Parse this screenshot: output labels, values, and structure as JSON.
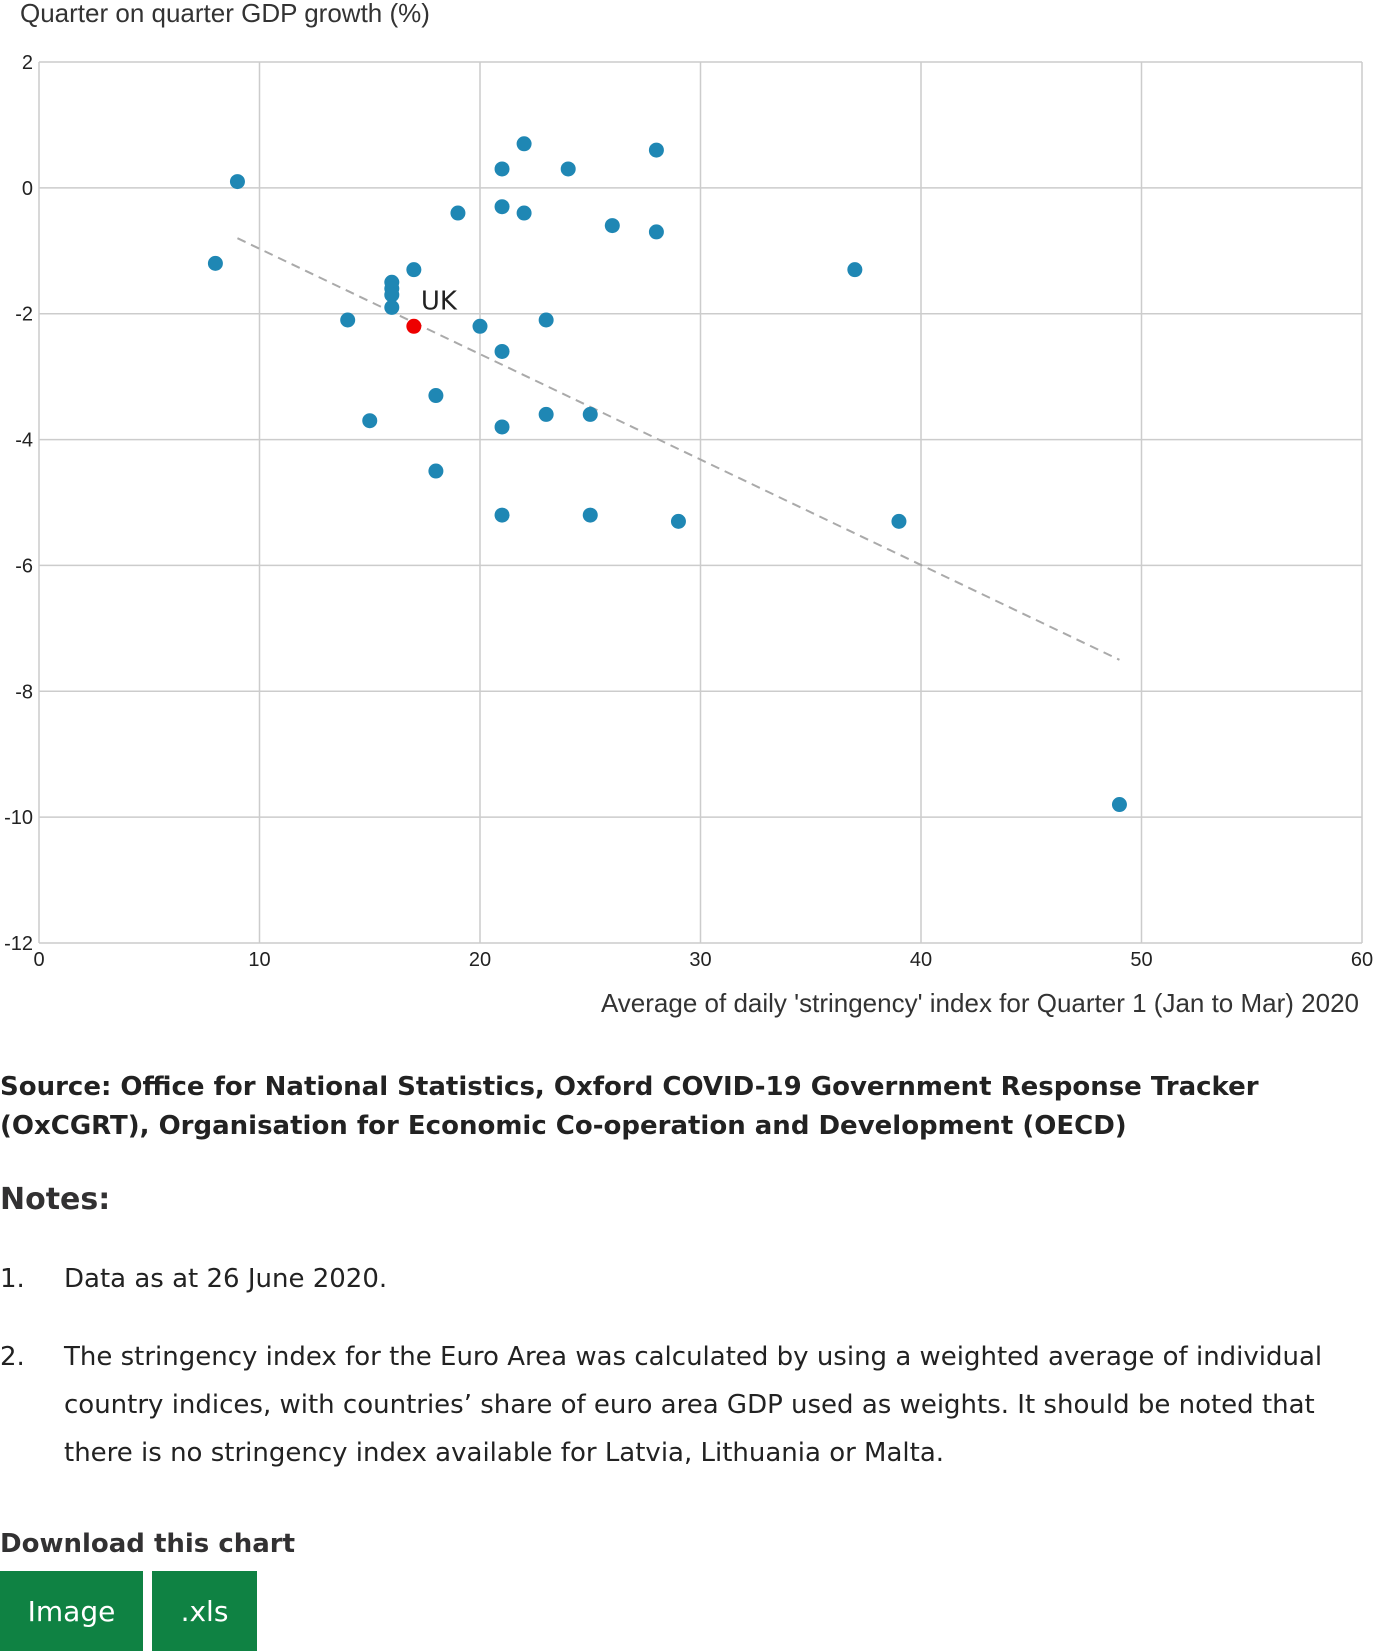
{
  "chart_data": {
    "type": "scatter",
    "ylabel": "Quarter on quarter GDP growth (%)",
    "xlabel": "Average of daily 'stringency' index for Quarter 1 (Jan to Mar) 2020",
    "xlim": [
      0,
      60
    ],
    "ylim": [
      -12,
      2
    ],
    "xticks": [
      "0",
      "10",
      "20",
      "30",
      "40",
      "50",
      "60"
    ],
    "yticks": [
      "2",
      "0",
      "-2",
      "-4",
      "-6",
      "-8",
      "-10",
      "-12"
    ],
    "grid": true,
    "point_color": "#1f87b4",
    "highlight_color": "#ee0000",
    "trendline_color": "#aaaaaa",
    "trendline": {
      "x": [
        9,
        49
      ],
      "y": [
        -0.8,
        -7.5
      ]
    },
    "points": [
      {
        "x": 8,
        "y": -1.2
      },
      {
        "x": 9,
        "y": 0.1
      },
      {
        "x": 14,
        "y": -2.1
      },
      {
        "x": 15,
        "y": -3.7
      },
      {
        "x": 16,
        "y": -1.5
      },
      {
        "x": 16,
        "y": -1.6
      },
      {
        "x": 16,
        "y": -1.7
      },
      {
        "x": 16,
        "y": -1.9
      },
      {
        "x": 17,
        "y": -1.3
      },
      {
        "x": 18,
        "y": -3.3
      },
      {
        "x": 18,
        "y": -4.5
      },
      {
        "x": 19,
        "y": -0.4
      },
      {
        "x": 20,
        "y": -2.2
      },
      {
        "x": 21,
        "y": 0.3
      },
      {
        "x": 21,
        "y": -0.3
      },
      {
        "x": 21,
        "y": -2.6
      },
      {
        "x": 21,
        "y": -3.8
      },
      {
        "x": 21,
        "y": -5.2
      },
      {
        "x": 22,
        "y": 0.7
      },
      {
        "x": 22,
        "y": -0.4
      },
      {
        "x": 23,
        "y": -2.1
      },
      {
        "x": 23,
        "y": -3.6
      },
      {
        "x": 24,
        "y": 0.3
      },
      {
        "x": 25,
        "y": -3.6
      },
      {
        "x": 25,
        "y": -5.2
      },
      {
        "x": 26,
        "y": -0.6
      },
      {
        "x": 28,
        "y": 0.6
      },
      {
        "x": 28,
        "y": -0.7
      },
      {
        "x": 29,
        "y": -5.3
      },
      {
        "x": 37,
        "y": -1.3
      },
      {
        "x": 39,
        "y": -5.3
      },
      {
        "x": 49,
        "y": -9.8
      }
    ],
    "highlight": {
      "label": "UK",
      "x": 17,
      "y": -2.2
    }
  },
  "source": "Source: Office for National Statistics, Oxford COVID-19 Government Response Tracker (OxCGRT), Organisation for Economic Co-operation and Development (OECD)",
  "notes_title": "Notes:",
  "notes": [
    {
      "num": "1.",
      "text": "Data as at 26 June 2020."
    },
    {
      "num": "2.",
      "text": "The stringency index for the Euro Area was calculated by using a weighted average of individual country indices, with countries’ share of euro area GDP used as weights. It should be noted that there is no stringency index available for Latvia, Lithuania or Malta."
    }
  ],
  "download": {
    "title": "Download this chart",
    "image_label": "Image",
    "xls_label": ".xls"
  }
}
